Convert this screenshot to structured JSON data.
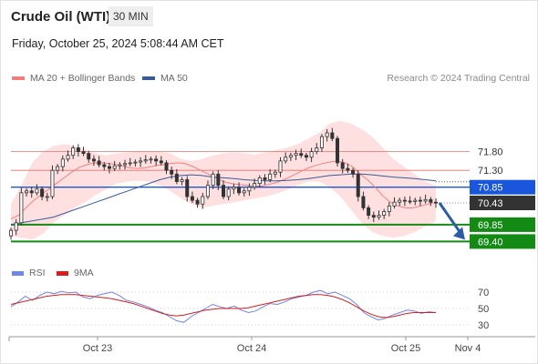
{
  "header": {
    "title": "Crude Oil (WTI)",
    "timeframe": "30 MIN",
    "datetime": "Friday, October 25, 2024 5:08:44 AM CET"
  },
  "legend": {
    "ma20_label": "MA 20 + Bollinger Bands",
    "ma50_label": "MA 50",
    "copyright": "Research © 2024 Trading Central"
  },
  "colors": {
    "ma20": "#f08080",
    "ma50": "#3a5a9a",
    "bollinger_fill": "#ffe0e0",
    "resistance": "#e07070",
    "pivot": "#1a56db",
    "support": "#138a13",
    "current": "#333333",
    "rsi": "#6f86e6",
    "rsi_ma": "#d42020",
    "arrow": "#2b5da4"
  },
  "chart_data": [
    {
      "type": "candlestick",
      "x_tick_labels": [
        "Oct 23",
        "Oct 24",
        "Oct 25",
        "Nov 4"
      ],
      "levels": [
        {
          "label": "71.80",
          "value": 71.8,
          "kind": "resistance"
        },
        {
          "label": "71.30",
          "value": 71.3,
          "kind": "resistance"
        },
        {
          "label": "70.85",
          "value": 70.85,
          "kind": "pivot"
        },
        {
          "label": "70.43",
          "value": 70.43,
          "kind": "current"
        },
        {
          "label": "69.85",
          "value": 69.85,
          "kind": "support"
        },
        {
          "label": "69.40",
          "value": 69.4,
          "kind": "support"
        }
      ],
      "y_range": [
        69.24,
        72.64
      ],
      "closes": [
        69.7,
        69.9,
        70.7,
        70.75,
        70.7,
        70.8,
        70.6,
        70.6,
        71.3,
        71.4,
        71.6,
        71.7,
        71.9,
        71.8,
        71.75,
        71.6,
        71.55,
        71.45,
        71.4,
        71.35,
        71.42,
        71.45,
        71.48,
        71.5,
        71.52,
        71.55,
        71.58,
        71.6,
        71.55,
        71.5,
        71.3,
        71.2,
        71.0,
        71.05,
        70.6,
        70.5,
        70.4,
        70.6,
        70.9,
        71.2,
        70.9,
        70.6,
        70.8,
        70.85,
        70.7,
        70.75,
        70.85,
        70.95,
        71.1,
        71.05,
        71.2,
        71.25,
        71.55,
        71.65,
        71.7,
        71.75,
        71.7,
        71.65,
        71.8,
        71.9,
        72.2,
        72.3,
        72.15,
        71.5,
        71.35,
        71.3,
        71.2,
        70.6,
        70.3,
        70.1,
        70.05,
        70.1,
        70.2,
        70.35,
        70.45,
        70.5,
        70.48,
        70.47,
        70.5,
        70.48,
        70.52,
        70.45,
        70.43
      ],
      "ma20": [
        70.0,
        70.1,
        70.3,
        70.5,
        70.65,
        70.8,
        70.95,
        71.1,
        71.25,
        71.38,
        71.45,
        71.5,
        71.5,
        71.48,
        71.45,
        71.4,
        71.36,
        71.35,
        71.38,
        71.42,
        71.45,
        71.48,
        71.5,
        71.48,
        71.4,
        71.3,
        71.2,
        71.1,
        71.0,
        70.95,
        70.92,
        70.9,
        70.88,
        70.88,
        70.92,
        70.98,
        71.05,
        71.15,
        71.25,
        71.35,
        71.42,
        71.48,
        71.52,
        71.55,
        71.5,
        71.4,
        71.2,
        71.05,
        70.85,
        70.62,
        70.45,
        70.35,
        70.3,
        70.3,
        70.35,
        70.4,
        70.45
      ],
      "ma50": [
        69.85,
        69.9,
        69.95,
        70.0,
        70.05,
        70.15,
        70.25,
        70.35,
        70.45,
        70.55,
        70.65,
        70.75,
        70.85,
        70.95,
        71.05,
        71.12,
        71.16,
        71.18,
        71.16,
        71.12,
        71.1,
        71.08,
        71.05,
        71.03,
        71.02,
        71.02,
        71.03,
        71.05,
        71.08,
        71.12,
        71.16,
        71.18,
        71.2,
        71.2,
        71.18,
        71.15,
        71.12,
        71.1,
        71.08,
        71.05,
        71.02
      ],
      "bollinger_upper": [
        70.4,
        70.9,
        71.5,
        71.8,
        71.95,
        72.0,
        71.95,
        71.85,
        71.75,
        71.7,
        71.75,
        71.78,
        71.8,
        71.82,
        71.8,
        71.75,
        71.6,
        71.55,
        71.6,
        71.7,
        71.75,
        71.78,
        71.75,
        71.72,
        71.78,
        71.85,
        71.9,
        72.0,
        72.15,
        72.3,
        72.55,
        72.62,
        72.55,
        72.4,
        72.2,
        71.9,
        71.6,
        71.4,
        71.2,
        71.0,
        70.9
      ],
      "bollinger_lower": [
        69.55,
        69.5,
        69.45,
        69.6,
        69.9,
        70.1,
        70.3,
        70.45,
        70.65,
        70.8,
        70.95,
        71.0,
        71.02,
        71.0,
        70.9,
        70.75,
        70.55,
        70.4,
        70.3,
        70.35,
        70.4,
        70.45,
        70.5,
        70.55,
        70.6,
        70.68,
        70.78,
        70.9,
        71.0,
        71.0,
        70.85,
        70.6,
        70.25,
        69.9,
        69.65,
        69.55,
        69.5,
        69.55,
        69.65,
        69.8,
        69.95
      ]
    },
    {
      "type": "line",
      "title": "RSI",
      "series": [
        {
          "name": "RSI",
          "values": [
            52,
            58,
            65,
            60,
            66,
            70,
            68,
            71,
            69,
            70,
            64,
            62,
            66,
            68,
            70,
            66,
            60,
            58,
            55,
            52,
            48,
            45,
            40,
            35,
            33,
            40,
            45,
            50,
            55,
            52,
            50,
            53,
            48,
            45,
            47,
            52,
            56,
            55,
            58,
            62,
            64,
            66,
            70,
            72,
            68,
            70,
            66,
            62,
            55,
            45,
            40,
            36,
            38,
            42,
            45,
            48,
            47,
            44,
            46,
            45
          ]
        },
        {
          "name": "9MA",
          "values": [
            55,
            57,
            59,
            61,
            63,
            65,
            66,
            67,
            67,
            67,
            66,
            65,
            64,
            63,
            62,
            60,
            58,
            56,
            53,
            50,
            47,
            44,
            42,
            41,
            42,
            44,
            46,
            48,
            49,
            50,
            50,
            50,
            50,
            51,
            53,
            55,
            57,
            59,
            61,
            63,
            65,
            66,
            67,
            67,
            66,
            64,
            61,
            57,
            52,
            47,
            43,
            40,
            39,
            40,
            42,
            44,
            45,
            45,
            45,
            45
          ]
        }
      ],
      "y_ticks": [
        70,
        50,
        30
      ],
      "y_range": [
        20,
        80
      ]
    }
  ]
}
